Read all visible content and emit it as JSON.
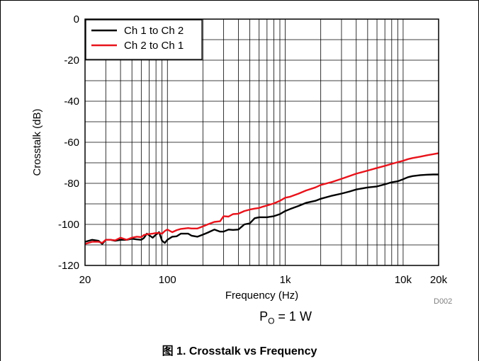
{
  "caption": "图 1. Crosstalk vs Frequency",
  "figure_code": "D002",
  "condition": {
    "symbol": "P",
    "subscript": "O",
    "rest": " = 1 W"
  },
  "colors": {
    "series1": "#000000",
    "series2": "#e8131b",
    "grid": "#000000"
  },
  "chart_data": {
    "type": "line",
    "title": "",
    "xlabel": "Frequency (Hz)",
    "ylabel": "Crosstalk (dB)",
    "x_scale": "log",
    "xlim": [
      20,
      20000
    ],
    "ylim": [
      -120,
      0
    ],
    "grid": true,
    "legend_position": "top-left",
    "x_ticks": [
      {
        "value": 20,
        "label": "20"
      },
      {
        "value": 100,
        "label": "100"
      },
      {
        "value": 1000,
        "label": "1k"
      },
      {
        "value": 10000,
        "label": "10k"
      },
      {
        "value": 20000,
        "label": "20k"
      }
    ],
    "y_ticks": [
      {
        "value": 0,
        "label": "0"
      },
      {
        "value": -20,
        "label": "-20"
      },
      {
        "value": -40,
        "label": "-40"
      },
      {
        "value": -60,
        "label": "-60"
      },
      {
        "value": -80,
        "label": "-80"
      },
      {
        "value": -100,
        "label": "-100"
      },
      {
        "value": -120,
        "label": "-120"
      }
    ],
    "series": [
      {
        "name": "Ch 1 to Ch 2",
        "color": "#000000",
        "x": [
          20,
          23,
          26,
          28,
          30,
          33,
          36,
          40,
          45,
          50,
          55,
          60,
          63,
          67,
          75,
          80,
          85,
          90,
          95,
          100,
          110,
          120,
          130,
          150,
          160,
          180,
          200,
          220,
          250,
          280,
          300,
          330,
          360,
          400,
          450,
          500,
          550,
          600,
          650,
          700,
          800,
          900,
          1000,
          1100,
          1300,
          1500,
          1800,
          2000,
          2500,
          3000,
          3500,
          4000,
          5000,
          6000,
          7000,
          8000,
          9000,
          10000,
          11000,
          12000,
          14000,
          16000,
          18000,
          20000
        ],
        "y": [
          -108.5,
          -107.5,
          -108,
          -109.5,
          -107.5,
          -107.5,
          -108,
          -107.5,
          -107.5,
          -107,
          -107.3,
          -107.5,
          -106.7,
          -104.5,
          -106.5,
          -105,
          -103.8,
          -108,
          -109,
          -107.5,
          -106,
          -105.8,
          -104.5,
          -104.5,
          -105.5,
          -106,
          -105,
          -104,
          -102.5,
          -103.5,
          -103.5,
          -102.5,
          -102.7,
          -102.5,
          -100,
          -99.5,
          -97,
          -96.5,
          -96.5,
          -96.5,
          -96,
          -95,
          -93.5,
          -92.5,
          -91,
          -89.5,
          -88.5,
          -87.5,
          -86,
          -85,
          -84,
          -83,
          -82,
          -81.5,
          -80.5,
          -79.5,
          -79,
          -78,
          -77,
          -76.5,
          -76,
          -75.8,
          -75.7,
          -75.7
        ]
      },
      {
        "name": "Ch 2 to Ch 1",
        "color": "#e8131b",
        "x": [
          20,
          23,
          26,
          28,
          30,
          33,
          36,
          40,
          45,
          50,
          55,
          60,
          63,
          67,
          75,
          80,
          85,
          90,
          95,
          100,
          110,
          120,
          130,
          150,
          160,
          180,
          200,
          220,
          250,
          280,
          300,
          330,
          360,
          400,
          450,
          500,
          550,
          600,
          650,
          700,
          800,
          900,
          1000,
          1100,
          1300,
          1500,
          1800,
          2000,
          2500,
          3000,
          3500,
          4000,
          5000,
          6000,
          7000,
          8000,
          9000,
          10000,
          11000,
          12000,
          14000,
          16000,
          18000,
          20000
        ],
        "y": [
          -109.5,
          -108.5,
          -108.5,
          -109,
          -107.5,
          -107.5,
          -107.8,
          -106.5,
          -107.5,
          -106.5,
          -106,
          -106.2,
          -105.2,
          -104.8,
          -104.5,
          -104.2,
          -104.2,
          -104.5,
          -103.2,
          -102.5,
          -103.8,
          -102.8,
          -102.2,
          -101.8,
          -102,
          -102,
          -101,
          -100,
          -98.8,
          -98.5,
          -96,
          -96.2,
          -95,
          -94.8,
          -93.5,
          -92.8,
          -92.3,
          -92,
          -91.3,
          -90.8,
          -89.8,
          -88.5,
          -87,
          -86.5,
          -85,
          -83.5,
          -82,
          -80.8,
          -79.3,
          -77.8,
          -76.5,
          -75.3,
          -73.8,
          -72.5,
          -71.5,
          -70.5,
          -69.7,
          -69,
          -68.2,
          -67.7,
          -67,
          -66.3,
          -65.8,
          -65.3
        ]
      }
    ]
  }
}
